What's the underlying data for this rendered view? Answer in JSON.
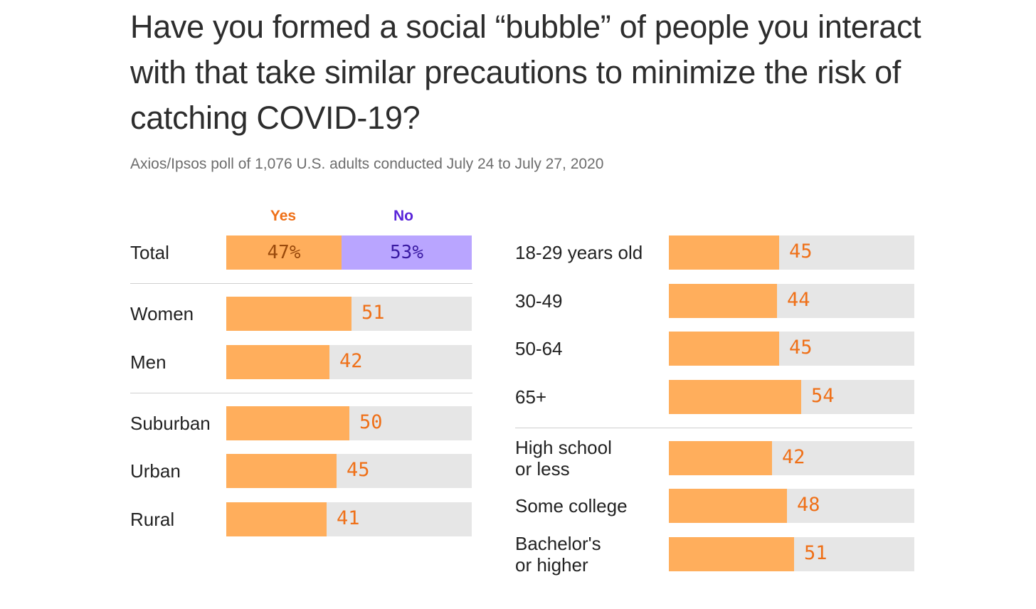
{
  "chart_data": {
    "type": "bar",
    "title": "Have you formed a social “bubble” of people you interact with that take similar precautions to minimize the risk of catching COVID-19?",
    "subtitle": "Axios/Ipsos poll of 1,076 U.S. adults conducted July 24 to July 27, 2020",
    "legend": {
      "yes": "Yes",
      "no": "No"
    },
    "colors": {
      "yes": "#ffae5c",
      "no": "#b9a5ff",
      "track": "#e6e6e6",
      "yes_text": "#ef7018",
      "no_text": "#5a25d9"
    },
    "xlim": [
      0,
      100
    ],
    "total": {
      "label": "Total",
      "yes": 47,
      "no": 53,
      "yes_text": "47%",
      "no_text": "53%"
    },
    "groups": [
      {
        "column": "left",
        "categories": [
          "Women",
          "Men"
        ],
        "values": [
          51,
          42
        ]
      },
      {
        "column": "left",
        "categories": [
          "Suburban",
          "Urban",
          "Rural"
        ],
        "values": [
          50,
          45,
          41
        ]
      },
      {
        "column": "right",
        "categories": [
          "18-29 years old",
          "30-49",
          "50-64",
          "65+"
        ],
        "values": [
          45,
          44,
          45,
          54
        ]
      },
      {
        "column": "right",
        "categories": [
          "High school\nor less",
          "Some college",
          "Bachelor's\nor higher"
        ],
        "values": [
          42,
          48,
          51
        ]
      }
    ]
  }
}
